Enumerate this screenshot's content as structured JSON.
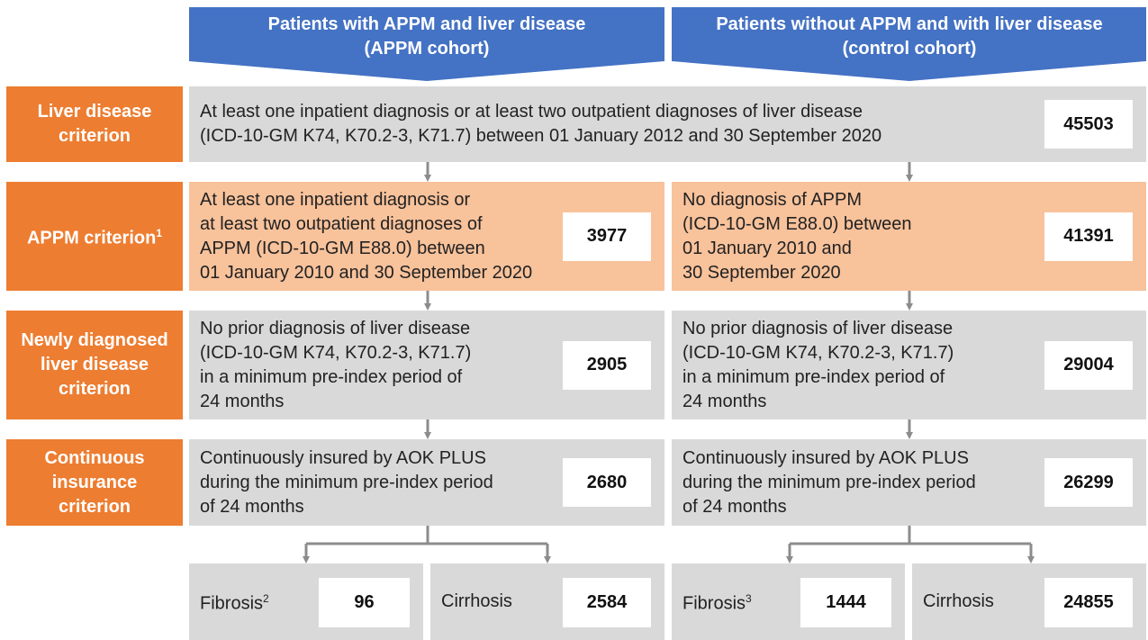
{
  "columns": [
    {
      "title": [
        "Patients with APPM and liver disease",
        "(APPM cohort)"
      ]
    },
    {
      "title": [
        "Patients without APPM and with liver disease",
        "(control cohort)"
      ]
    }
  ],
  "rows": [
    {
      "label": [
        "Liver disease",
        "criterion"
      ],
      "cells": [
        {
          "text": [
            "At least one inpatient diagnosis or at least two outpatient diagnoses of liver disease",
            "(ICD-10-GM K74, K70.2-3, K71.7) between 01 January 2012 and 30 September 2020"
          ],
          "count": 45503
        }
      ]
    },
    {
      "label": [
        "APPM criterion"
      ],
      "label_note": "1",
      "cells": [
        {
          "text": [
            "At least one inpatient diagnosis or",
            "at least two outpatient diagnoses of",
            "APPM (ICD-10-GM E88.0) between",
            "01 January 2010 and 30 September 2020"
          ],
          "count": 3977
        },
        {
          "text": [
            "No diagnosis of APPM",
            "(ICD-10-GM E88.0) between",
            "01 January 2010 and",
            "30 September 2020"
          ],
          "count": 41391
        }
      ]
    },
    {
      "label": [
        "Newly diagnosed",
        "liver disease",
        "criterion"
      ],
      "cells": [
        {
          "text": [
            "No prior diagnosis of liver disease",
            "(ICD-10-GM K74, K70.2-3, K71.7)",
            "in a minimum pre-index period of",
            "24 months"
          ],
          "count": 2905
        },
        {
          "text": [
            "No prior diagnosis of liver disease",
            "(ICD-10-GM K74, K70.2-3, K71.7)",
            "in a minimum pre-index period of",
            "24 months"
          ],
          "count": 29004
        }
      ]
    },
    {
      "label": [
        "Continuous",
        "insurance",
        "criterion"
      ],
      "cells": [
        {
          "text": [
            "Continuously insured by AOK PLUS",
            "during the minimum pre-index period",
            "of 24 months"
          ],
          "count": 2680
        },
        {
          "text": [
            "Continuously insured by AOK PLUS",
            "during the minimum pre-index period",
            "of 24 months"
          ],
          "count": 26299
        }
      ]
    }
  ],
  "outcomes": [
    {
      "label": "Fibrosis",
      "note": "2",
      "count": 96
    },
    {
      "label": "Cirrhosis",
      "count": 2584
    },
    {
      "label": "Fibrosis",
      "note": "3",
      "count": 1444
    },
    {
      "label": "Cirrhosis",
      "count": 24855
    }
  ]
}
